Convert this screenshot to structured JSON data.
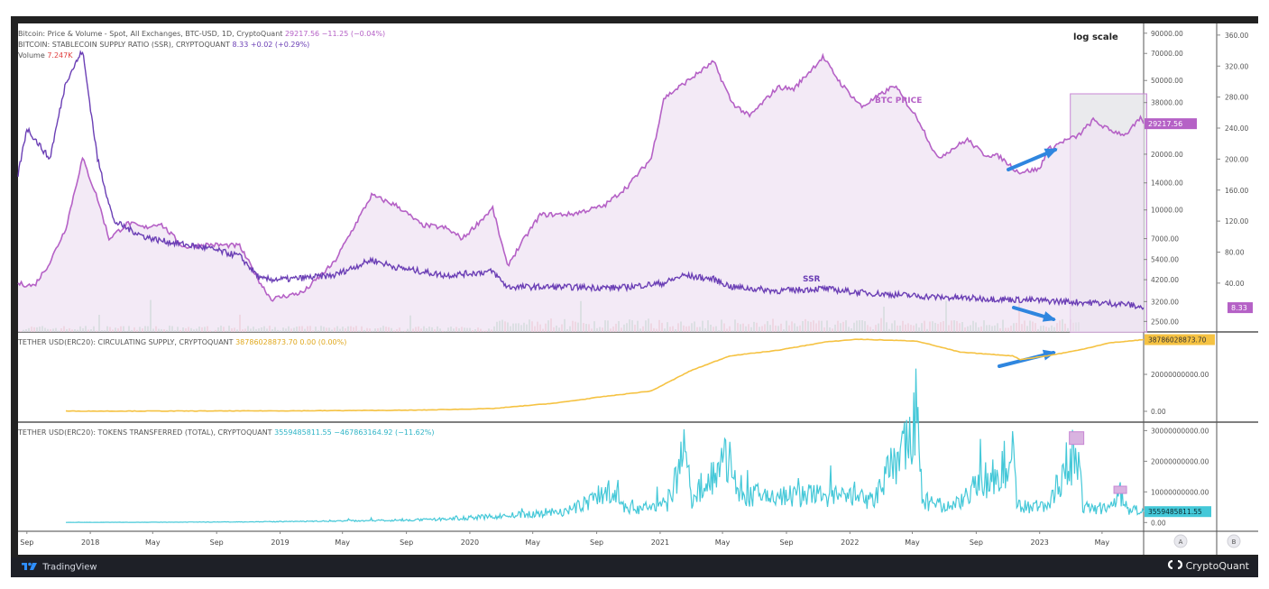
{
  "colors": {
    "btc_price": "#b561c6",
    "ssr": "#6b3fb5",
    "usdt_supply": "#f5c242",
    "tokens_transferred": "#44c8d8",
    "volume_up": "#8fc7a0",
    "volume_down": "#eba1a1",
    "highlight_box": "#c887d4",
    "arrow": "#2f86df",
    "volume_value": "#e04040"
  },
  "legend": {
    "btc": {
      "label": "Bitcoin: Price & Volume - Spot, All Exchanges, BTC-USD, 1D, CryptoQuant",
      "value": "29217.56",
      "change": "−11.25 (−0.04%)"
    },
    "ssr": {
      "label": "BITCOIN: STABLECOIN SUPPLY RATIO (SSR), CRYPTOQUANT",
      "value": "8.33",
      "change": "+0.02 (+0.29%)"
    },
    "volume": {
      "label": "Volume",
      "value": "7.247K"
    },
    "usdt_supply": {
      "label": "TETHER USD(ERC20): CIRCULATING SUPPLY, CRYPTOQUANT",
      "value": "38786028873.70",
      "change": "0.00 (0.00%)"
    },
    "tokens_transferred": {
      "label": "TETHER USD(ERC20): TOKENS TRANSFERRED (TOTAL), CRYPTOQUANT",
      "value": "3559485811.55",
      "change": "−467863164.92 (−11.62%)"
    }
  },
  "annotations": {
    "log_scale": "log scale",
    "btc_price": "BTC PRICE",
    "ssr": "SSR"
  },
  "branding": {
    "tradingview": "TradingView",
    "cryptoquant": "CryptoQuant"
  },
  "icons": {
    "tradingview": "tradingview-logo-icon",
    "cryptoquant": "cryptoquant-logo-icon",
    "scale_a": "scale-auto-icon",
    "scale_b": "scale-b-icon"
  },
  "chart_data": [
    {
      "type": "line",
      "title": "Bitcoin: Price & Volume - Spot, All Exchanges, BTC-USD, 1D, CryptoQuant",
      "y_scale": "log",
      "x_tick_labels": [
        "Sep",
        "2018",
        "May",
        "Sep",
        "2019",
        "May",
        "Sep",
        "2020",
        "May",
        "Sep",
        "2021",
        "May",
        "Sep",
        "2022",
        "May",
        "Sep",
        "2023",
        "May"
      ],
      "x_tick_dates": [
        "2017-09-01",
        "2018-01-01",
        "2018-05-01",
        "2018-09-01",
        "2019-01-01",
        "2019-05-01",
        "2019-09-01",
        "2020-01-01",
        "2020-05-01",
        "2020-09-01",
        "2021-01-01",
        "2021-05-01",
        "2021-09-01",
        "2022-01-01",
        "2022-05-01",
        "2022-09-01",
        "2023-01-01",
        "2023-05-01"
      ],
      "x_range": [
        "2017-08-15",
        "2023-07-20"
      ],
      "left_axis_ticks": [
        "90000.00",
        "70000.00",
        "50000.00",
        "38000.00",
        "29217.56",
        "20000.00",
        "14000.00",
        "10000.00",
        "7000.00",
        "5400.00",
        "4200.00",
        "3200.00",
        "2500.00"
      ],
      "left_axis_ylim": [
        2400,
        95000
      ],
      "right_axis_ticks": [
        "360.00",
        "320.00",
        "280.00",
        "240.00",
        "200.00",
        "160.00",
        "120.00",
        "80.00",
        "40.00",
        "8.33"
      ],
      "right_axis_ylim": [
        -16,
        368
      ],
      "series": [
        {
          "name": "BTC PRICE",
          "axis": "left",
          "x": [
            "2017-08-15",
            "2017-09-15",
            "2017-10-15",
            "2017-11-15",
            "2017-12-17",
            "2018-01-15",
            "2018-02-06",
            "2018-03-15",
            "2018-04-15",
            "2018-05-15",
            "2018-06-30",
            "2018-08-15",
            "2018-10-15",
            "2018-11-25",
            "2018-12-15",
            "2019-02-15",
            "2019-04-15",
            "2019-06-26",
            "2019-08-15",
            "2019-09-30",
            "2019-11-15",
            "2019-12-18",
            "2020-02-14",
            "2020-03-13",
            "2020-04-15",
            "2020-05-15",
            "2020-07-15",
            "2020-09-15",
            "2020-10-31",
            "2020-12-15",
            "2021-01-08",
            "2021-02-15",
            "2021-04-14",
            "2021-05-19",
            "2021-06-22",
            "2021-08-15",
            "2021-09-15",
            "2021-11-10",
            "2021-12-15",
            "2022-01-24",
            "2022-03-28",
            "2022-05-15",
            "2022-06-18",
            "2022-08-15",
            "2022-09-15",
            "2022-10-15",
            "2022-11-21",
            "2023-01-01",
            "2023-01-15",
            "2023-02-15",
            "2023-03-15",
            "2023-04-14",
            "2023-05-15",
            "2023-06-15",
            "2023-07-14",
            "2023-07-20"
          ],
          "y": [
            4000,
            3900,
            5200,
            8000,
            19000,
            11500,
            7000,
            8500,
            8000,
            8500,
            6300,
            6500,
            6400,
            4000,
            3300,
            3600,
            5200,
            12000,
            10500,
            8300,
            8000,
            7000,
            10200,
            5000,
            7000,
            9400,
            9500,
            10500,
            13500,
            19000,
            40000,
            48000,
            63000,
            38000,
            32000,
            46000,
            45000,
            67000,
            48000,
            36000,
            47000,
            30000,
            19000,
            24000,
            20000,
            19500,
            16000,
            16600,
            21000,
            23500,
            25000,
            30500,
            27000,
            25500,
            31000,
            29217.56
          ]
        },
        {
          "name": "SSR",
          "axis": "right",
          "x": [
            "2017-08-15",
            "2017-09-01",
            "2017-10-15",
            "2017-11-15",
            "2017-12-17",
            "2018-01-15",
            "2018-02-15",
            "2018-03-15",
            "2018-04-15",
            "2018-05-15",
            "2018-06-30",
            "2018-08-15",
            "2018-10-15",
            "2018-11-25",
            "2019-01-15",
            "2019-04-15",
            "2019-06-26",
            "2019-08-15",
            "2019-11-15",
            "2020-02-14",
            "2020-03-13",
            "2020-06-15",
            "2020-10-15",
            "2021-01-08",
            "2021-02-15",
            "2021-04-14",
            "2021-05-19",
            "2021-08-15",
            "2021-11-10",
            "2022-01-15",
            "2022-06-15",
            "2022-12-15",
            "2023-06-15",
            "2023-07-20"
          ],
          "y": [
            180,
            240,
            200,
            300,
            340,
            200,
            120,
            110,
            100,
            95,
            90,
            85,
            75,
            45,
            45,
            50,
            70,
            60,
            50,
            55,
            35,
            35,
            34,
            40,
            50,
            45,
            35,
            30,
            33,
            28,
            22,
            18,
            13,
            8.33
          ]
        },
        {
          "name": "Volume",
          "axis": "volume",
          "note": "daily exchange volume bars (green up / red down), last value 7.247K",
          "last_value": "7.247K"
        }
      ]
    },
    {
      "type": "line",
      "title": "TETHER USD(ERC20): CIRCULATING SUPPLY, CRYPTOQUANT",
      "right_axis_ticks": [
        "38786028873.70",
        "20000000000.00",
        "0.00"
      ],
      "ylim": [
        0,
        41000000000
      ],
      "series": [
        {
          "name": "TETHER USD(ERC20): CIRCULATING SUPPLY",
          "x": [
            "2017-11-15",
            "2018-06-15",
            "2019-01-15",
            "2019-09-15",
            "2020-02-15",
            "2020-06-15",
            "2020-09-15",
            "2020-12-15",
            "2021-03-01",
            "2021-05-15",
            "2021-08-15",
            "2021-11-15",
            "2022-01-15",
            "2022-05-10",
            "2022-08-01",
            "2022-11-10",
            "2022-11-25",
            "2023-01-15",
            "2023-03-15",
            "2023-05-15",
            "2023-07-20"
          ],
          "y": [
            100000000,
            150000000,
            250000000,
            600000000,
            1500000000,
            4500000000,
            8000000000,
            11000000000,
            22000000000,
            30000000000,
            33000000000,
            37500000000,
            39000000000,
            38000000000,
            32000000000,
            30000000000,
            28000000000,
            30000000000,
            33000000000,
            37000000000,
            38786028873.7
          ]
        }
      ]
    },
    {
      "type": "line",
      "title": "TETHER USD(ERC20): TOKENS TRANSFERRED (TOTAL), CRYPTOQUANT",
      "right_axis_ticks": [
        "30000000000.00",
        "20000000000.00",
        "10000000000.00",
        "3559485811.55",
        "0.00"
      ],
      "ylim": [
        -500000000,
        31000000000
      ],
      "series": [
        {
          "name": "TETHER USD(ERC20): TOKENS TRANSFERRED (TOTAL)",
          "x": [
            "2017-11-15",
            "2018-06-15",
            "2019-01-15",
            "2019-10-15",
            "2020-03-15",
            "2020-07-15",
            "2020-10-10",
            "2020-10-20",
            "2020-11-01",
            "2021-01-15",
            "2021-02-22",
            "2021-03-01",
            "2021-05-19",
            "2021-05-25",
            "2021-08-15",
            "2021-11-15",
            "2022-02-15",
            "2022-05-12",
            "2022-05-20",
            "2022-07-15",
            "2022-11-10",
            "2022-11-20",
            "2023-01-15",
            "2023-03-13",
            "2023-03-25",
            "2023-05-15",
            "2023-06-05",
            "2023-06-20",
            "2023-07-20"
          ],
          "y": [
            50000000,
            100000000,
            300000000,
            900000000,
            2200000000,
            4000000000,
            12000000000,
            5000000000,
            4500000000,
            6000000000,
            24000000000,
            8000000000,
            22000000000,
            9000000000,
            8500000000,
            9000000000,
            7000000000,
            33000000000,
            6500000000,
            5000000000,
            21000000000,
            5500000000,
            5000000000,
            25000000000,
            5000000000,
            4500000000,
            9000000000,
            4500000000,
            3559485811.55
          ]
        }
      ]
    }
  ]
}
